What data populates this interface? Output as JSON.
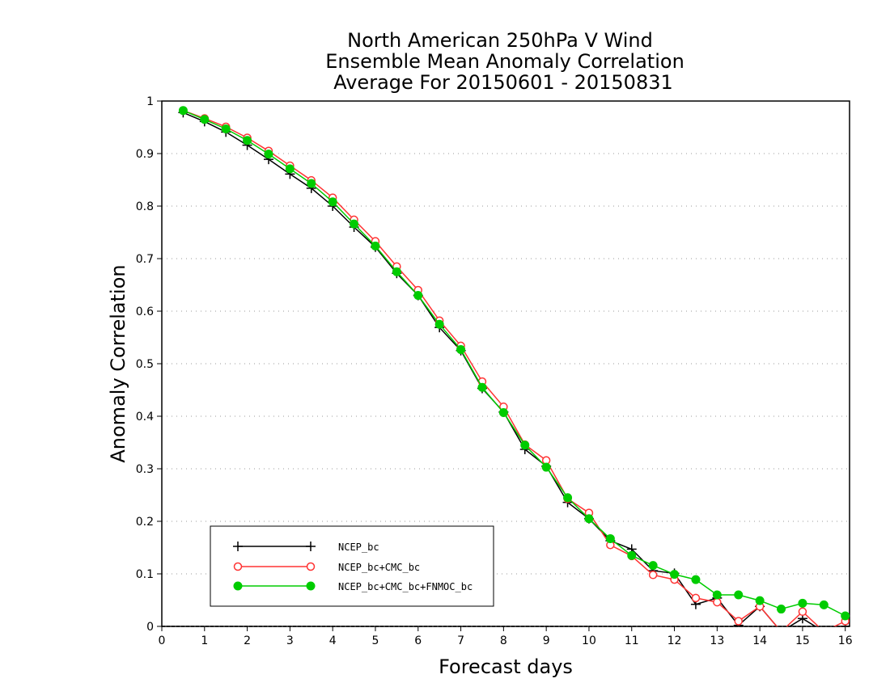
{
  "chart_data": {
    "type": "line",
    "title_lines": [
      "North American 250hPa V Wind",
      "Ensemble Mean Anomaly Correlation",
      "Average For 20150601 - 20150831"
    ],
    "xlabel": "Forecast days",
    "ylabel": "Anomaly Correlation",
    "xlim": [
      0,
      16.1
    ],
    "ylim": [
      0,
      1
    ],
    "x_ticks": [
      "0",
      "1",
      "2",
      "3",
      "4",
      "5",
      "6",
      "7",
      "8",
      "9",
      "10",
      "11",
      "12",
      "13",
      "14",
      "15",
      "16"
    ],
    "y_ticks": [
      "0",
      "0.1",
      "0.2",
      "0.3",
      "0.4",
      "0.5",
      "0.6",
      "0.7",
      "0.8",
      "0.9",
      "1"
    ],
    "grid": true,
    "legend_position": "bottom-left",
    "x": [
      0.5,
      1,
      1.5,
      2,
      2.5,
      3,
      3.5,
      4,
      4.5,
      5,
      5.5,
      6,
      6.5,
      7,
      7.5,
      8,
      8.5,
      9,
      9.5,
      10,
      10.5,
      11,
      11.5,
      12,
      12.5,
      13,
      13.5,
      14,
      14.5,
      15,
      15.5,
      16
    ],
    "series": [
      {
        "name": "NCEP_bc",
        "color": "#000000",
        "marker": "plus",
        "values": [
          0.978,
          0.961,
          0.941,
          0.916,
          0.889,
          0.861,
          0.834,
          0.8,
          0.76,
          0.722,
          0.672,
          0.63,
          0.569,
          0.525,
          0.453,
          0.408,
          0.337,
          0.305,
          0.236,
          0.205,
          0.163,
          0.147,
          0.106,
          0.101,
          0.042,
          0.054,
          0.002,
          0.038,
          -0.01,
          0.015,
          -0.01,
          0.0
        ]
      },
      {
        "name": "NCEP_bc+CMC_bc",
        "color": "#ff3333",
        "marker": "open-circle",
        "values": [
          0.982,
          0.967,
          0.951,
          0.93,
          0.905,
          0.877,
          0.849,
          0.816,
          0.774,
          0.733,
          0.685,
          0.64,
          0.582,
          0.534,
          0.466,
          0.418,
          0.346,
          0.316,
          0.243,
          0.216,
          0.155,
          0.134,
          0.098,
          0.089,
          0.054,
          0.046,
          0.01,
          0.038,
          -0.01,
          0.028,
          -0.01,
          0.01
        ]
      },
      {
        "name": "NCEP_bc+CMC_bc+FNMOC_bc",
        "color": "#00cc00",
        "marker": "filled-circle",
        "values": [
          0.982,
          0.965,
          0.947,
          0.925,
          0.899,
          0.871,
          0.843,
          0.808,
          0.766,
          0.724,
          0.675,
          0.63,
          0.575,
          0.527,
          0.455,
          0.407,
          0.345,
          0.303,
          0.245,
          0.205,
          0.167,
          0.135,
          0.116,
          0.099,
          0.089,
          0.06,
          0.06,
          0.049,
          0.033,
          0.044,
          0.041,
          0.02
        ]
      }
    ]
  }
}
